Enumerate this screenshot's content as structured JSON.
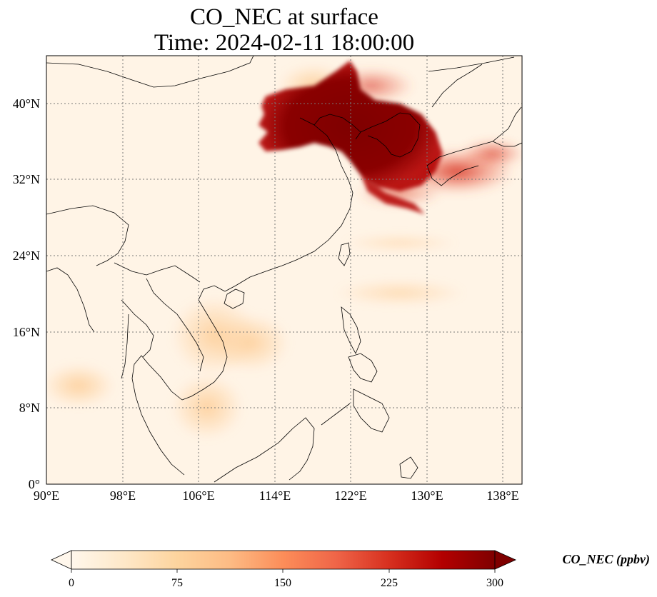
{
  "title": {
    "line1": "CO_NEC at surface",
    "line2": "Time: 2024-02-11 18:00:00"
  },
  "map": {
    "lon_range": [
      90,
      140
    ],
    "lat_range": [
      0,
      45
    ],
    "lon_ticks": [
      "90°E",
      "98°E",
      "106°E",
      "114°E",
      "122°E",
      "130°E",
      "138°E"
    ],
    "lat_ticks": [
      "0°",
      "8°N",
      "16°N",
      "24°N",
      "32°N",
      "40°N"
    ],
    "gridlines": true
  },
  "colorbar": {
    "label": "CO_NEC (ppbv)",
    "ticks": [
      "0",
      "75",
      "150",
      "225",
      "300"
    ],
    "range": [
      0,
      300
    ],
    "extend": "both",
    "colormap": "OrRd",
    "colors": [
      "#fff7ec",
      "#fee8c8",
      "#fdd49e",
      "#fdbb84",
      "#fc8d59",
      "#ef6548",
      "#d7301f",
      "#b30000",
      "#7f0000"
    ]
  }
}
